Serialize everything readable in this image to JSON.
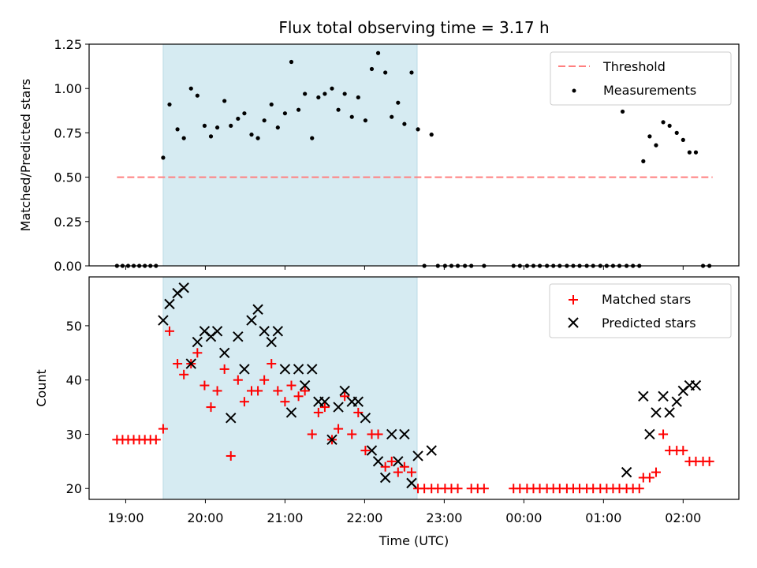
{
  "figure": {
    "title": "Flux total observing time = 3.17 h"
  },
  "chart_data": [
    {
      "type": "scatter",
      "ylabel": "Matched/Predicted stars",
      "xlabel": "",
      "x_unit": "hours since 19:00 UTC",
      "xlim": [
        -0.46,
        7.7
      ],
      "ylim": [
        0.0,
        1.25
      ],
      "yticks": [
        "0.00",
        "0.25",
        "0.50",
        "0.75",
        "1.00",
        "1.25"
      ],
      "yticks_values": [
        0,
        0.25,
        0.5,
        0.75,
        1.0,
        1.25
      ],
      "shaded_span": [
        0.47,
        3.66
      ],
      "legend": {
        "placement": "top-right",
        "entries": [
          "Threshold",
          "Measurements"
        ]
      },
      "threshold": {
        "name": "Threshold",
        "value": 0.5,
        "x_range": [
          -0.11,
          7.37
        ],
        "color": "#ff7f7f",
        "style": "dashed"
      },
      "measurements": {
        "name": "Measurements",
        "color": "#000000",
        "points": [
          [
            -0.11,
            0
          ],
          [
            -0.04,
            0
          ],
          [
            0.03,
            0
          ],
          [
            0.1,
            0
          ],
          [
            0.17,
            0
          ],
          [
            0.24,
            0
          ],
          [
            0.31,
            0
          ],
          [
            0.38,
            0
          ],
          [
            0.47,
            0.61
          ],
          [
            0.55,
            0.91
          ],
          [
            0.65,
            0.77
          ],
          [
            0.73,
            0.72
          ],
          [
            0.82,
            1.0
          ],
          [
            0.9,
            0.96
          ],
          [
            0.99,
            0.79
          ],
          [
            1.07,
            0.73
          ],
          [
            1.15,
            0.78
          ],
          [
            1.24,
            0.93
          ],
          [
            1.32,
            0.79
          ],
          [
            1.41,
            0.83
          ],
          [
            1.49,
            0.86
          ],
          [
            1.58,
            0.74
          ],
          [
            1.66,
            0.72
          ],
          [
            1.74,
            0.82
          ],
          [
            1.83,
            0.91
          ],
          [
            1.91,
            0.78
          ],
          [
            2.0,
            0.86
          ],
          [
            2.08,
            1.15
          ],
          [
            2.17,
            0.88
          ],
          [
            2.25,
            0.97
          ],
          [
            2.34,
            0.72
          ],
          [
            2.42,
            0.95
          ],
          [
            2.5,
            0.97
          ],
          [
            2.59,
            1.0
          ],
          [
            2.67,
            0.88
          ],
          [
            2.75,
            0.97
          ],
          [
            2.84,
            0.84
          ],
          [
            2.92,
            0.95
          ],
          [
            3.01,
            0.82
          ],
          [
            3.09,
            1.11
          ],
          [
            3.17,
            1.2
          ],
          [
            3.26,
            1.09
          ],
          [
            3.34,
            0.84
          ],
          [
            3.42,
            0.92
          ],
          [
            3.5,
            0.8
          ],
          [
            3.59,
            1.09
          ],
          [
            3.67,
            0.77
          ],
          [
            3.84,
            0.74
          ],
          [
            3.75,
            0
          ],
          [
            3.92,
            0
          ],
          [
            4.01,
            0
          ],
          [
            4.09,
            0
          ],
          [
            4.17,
            0
          ],
          [
            4.26,
            0
          ],
          [
            4.34,
            0
          ],
          [
            4.5,
            0
          ],
          [
            4.87,
            0
          ],
          [
            4.95,
            0
          ],
          [
            5.04,
            0
          ],
          [
            5.12,
            0
          ],
          [
            5.2,
            0
          ],
          [
            5.29,
            0
          ],
          [
            5.37,
            0
          ],
          [
            5.45,
            0
          ],
          [
            5.54,
            0
          ],
          [
            5.62,
            0
          ],
          [
            5.7,
            0
          ],
          [
            5.79,
            0
          ],
          [
            5.87,
            0
          ],
          [
            5.96,
            0
          ],
          [
            6.04,
            0
          ],
          [
            6.12,
            0
          ],
          [
            6.2,
            0
          ],
          [
            6.29,
            0
          ],
          [
            6.37,
            0
          ],
          [
            6.45,
            0
          ],
          [
            6.24,
            0.87
          ],
          [
            6.5,
            0.59
          ],
          [
            6.58,
            0.73
          ],
          [
            6.66,
            0.68
          ],
          [
            6.75,
            0.81
          ],
          [
            6.83,
            0.79
          ],
          [
            6.92,
            0.75
          ],
          [
            7.0,
            0.71
          ],
          [
            7.08,
            0.64
          ],
          [
            7.16,
            0.64
          ],
          [
            7.25,
            0
          ],
          [
            7.33,
            0
          ]
        ]
      }
    },
    {
      "type": "scatter",
      "xlabel": "Time (UTC)",
      "ylabel": "Count",
      "x_unit": "hours since 19:00 UTC",
      "xlim": [
        -0.46,
        7.7
      ],
      "ylim": [
        18,
        59
      ],
      "yticks": [
        "20",
        "30",
        "40",
        "50"
      ],
      "yticks_values": [
        20,
        30,
        40,
        50
      ],
      "xticks": [
        "19:00",
        "20:00",
        "21:00",
        "22:00",
        "23:00",
        "00:00",
        "01:00",
        "02:00"
      ],
      "xticks_values": [
        0,
        1,
        2,
        3,
        4,
        5,
        6,
        7
      ],
      "shaded_span": [
        0.47,
        3.66
      ],
      "legend": {
        "placement": "top-right",
        "entries": [
          "Matched stars",
          "Predicted stars"
        ]
      },
      "series": [
        {
          "name": "Matched stars",
          "marker": "+",
          "color": "#ff0000",
          "points": [
            [
              -0.11,
              29
            ],
            [
              -0.04,
              29
            ],
            [
              0.03,
              29
            ],
            [
              0.1,
              29
            ],
            [
              0.17,
              29
            ],
            [
              0.24,
              29
            ],
            [
              0.31,
              29
            ],
            [
              0.38,
              29
            ],
            [
              0.47,
              31
            ],
            [
              0.55,
              49
            ],
            [
              0.65,
              43
            ],
            [
              0.73,
              41
            ],
            [
              0.82,
              43
            ],
            [
              0.9,
              45
            ],
            [
              0.99,
              39
            ],
            [
              1.07,
              35
            ],
            [
              1.15,
              38
            ],
            [
              1.24,
              42
            ],
            [
              1.32,
              26
            ],
            [
              1.41,
              40
            ],
            [
              1.49,
              36
            ],
            [
              1.58,
              38
            ],
            [
              1.66,
              38
            ],
            [
              1.74,
              40
            ],
            [
              1.83,
              43
            ],
            [
              1.91,
              38
            ],
            [
              2.0,
              36
            ],
            [
              2.08,
              39
            ],
            [
              2.17,
              37
            ],
            [
              2.25,
              38
            ],
            [
              2.34,
              30
            ],
            [
              2.42,
              34
            ],
            [
              2.5,
              35
            ],
            [
              2.59,
              29
            ],
            [
              2.67,
              31
            ],
            [
              2.75,
              37
            ],
            [
              2.84,
              30
            ],
            [
              2.92,
              34
            ],
            [
              3.01,
              27
            ],
            [
              3.09,
              30
            ],
            [
              3.17,
              30
            ],
            [
              3.26,
              24
            ],
            [
              3.34,
              25
            ],
            [
              3.42,
              23
            ],
            [
              3.5,
              24
            ],
            [
              3.59,
              23
            ],
            [
              3.67,
              20
            ],
            [
              3.75,
              20
            ],
            [
              3.84,
              20
            ],
            [
              3.92,
              20
            ],
            [
              4.01,
              20
            ],
            [
              4.09,
              20
            ],
            [
              4.17,
              20
            ],
            [
              4.34,
              20
            ],
            [
              4.42,
              20
            ],
            [
              4.5,
              20
            ],
            [
              4.87,
              20
            ],
            [
              4.95,
              20
            ],
            [
              5.04,
              20
            ],
            [
              5.12,
              20
            ],
            [
              5.2,
              20
            ],
            [
              5.29,
              20
            ],
            [
              5.37,
              20
            ],
            [
              5.45,
              20
            ],
            [
              5.54,
              20
            ],
            [
              5.62,
              20
            ],
            [
              5.7,
              20
            ],
            [
              5.79,
              20
            ],
            [
              5.87,
              20
            ],
            [
              5.96,
              20
            ],
            [
              6.04,
              20
            ],
            [
              6.12,
              20
            ],
            [
              6.2,
              20
            ],
            [
              6.29,
              20
            ],
            [
              6.37,
              20
            ],
            [
              6.45,
              20
            ],
            [
              6.5,
              22
            ],
            [
              6.58,
              22
            ],
            [
              6.66,
              23
            ],
            [
              6.75,
              30
            ],
            [
              6.83,
              27
            ],
            [
              6.92,
              27
            ],
            [
              7.0,
              27
            ],
            [
              7.08,
              25
            ],
            [
              7.16,
              25
            ],
            [
              7.25,
              25
            ],
            [
              7.33,
              25
            ]
          ]
        },
        {
          "name": "Predicted stars",
          "marker": "x",
          "color": "#000000",
          "points": [
            [
              0.47,
              51
            ],
            [
              0.55,
              54
            ],
            [
              0.65,
              56
            ],
            [
              0.73,
              57
            ],
            [
              0.82,
              43
            ],
            [
              0.9,
              47
            ],
            [
              0.99,
              49
            ],
            [
              1.07,
              48
            ],
            [
              1.15,
              49
            ],
            [
              1.24,
              45
            ],
            [
              1.32,
              33
            ],
            [
              1.41,
              48
            ],
            [
              1.49,
              42
            ],
            [
              1.58,
              51
            ],
            [
              1.66,
              53
            ],
            [
              1.74,
              49
            ],
            [
              1.83,
              47
            ],
            [
              1.91,
              49
            ],
            [
              2.0,
              42
            ],
            [
              2.08,
              34
            ],
            [
              2.17,
              42
            ],
            [
              2.25,
              39
            ],
            [
              2.34,
              42
            ],
            [
              2.42,
              36
            ],
            [
              2.5,
              36
            ],
            [
              2.59,
              29
            ],
            [
              2.67,
              35
            ],
            [
              2.75,
              38
            ],
            [
              2.84,
              36
            ],
            [
              2.92,
              36
            ],
            [
              3.01,
              33
            ],
            [
              3.09,
              27
            ],
            [
              3.17,
              25
            ],
            [
              3.26,
              22
            ],
            [
              3.34,
              30
            ],
            [
              3.42,
              25
            ],
            [
              3.5,
              30
            ],
            [
              3.59,
              21
            ],
            [
              3.67,
              26
            ],
            [
              3.84,
              27
            ],
            [
              6.29,
              23
            ],
            [
              6.5,
              37
            ],
            [
              6.58,
              30
            ],
            [
              6.66,
              34
            ],
            [
              6.75,
              37
            ],
            [
              6.83,
              34
            ],
            [
              6.92,
              36
            ],
            [
              7.0,
              38
            ],
            [
              7.08,
              39
            ],
            [
              7.16,
              39
            ]
          ]
        }
      ]
    }
  ]
}
